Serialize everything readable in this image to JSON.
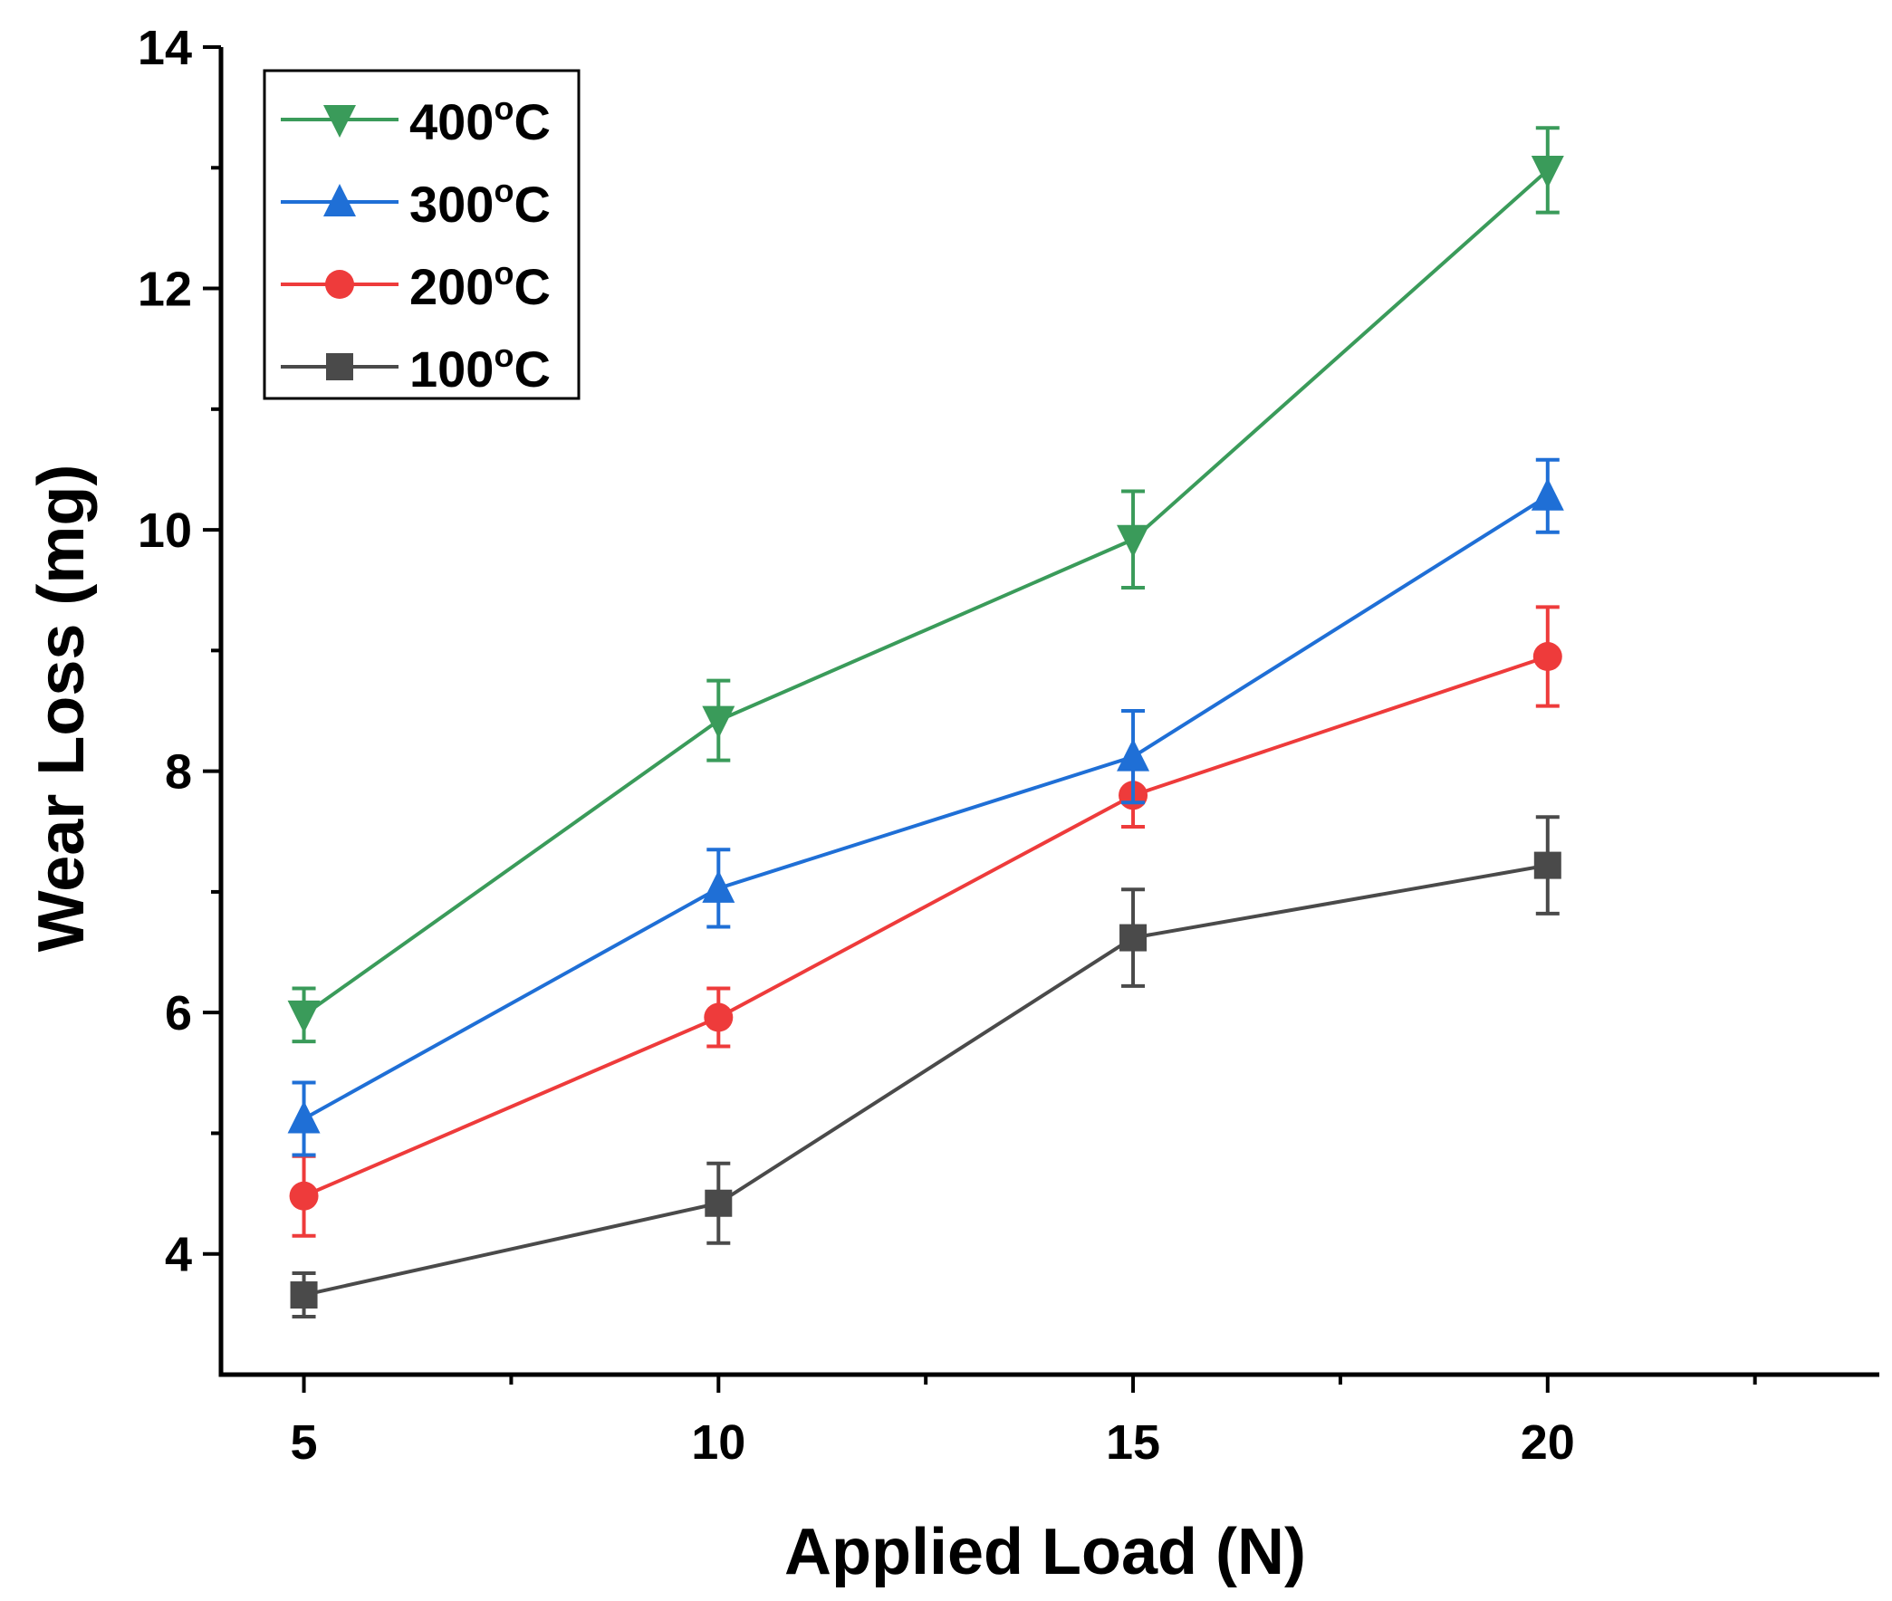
{
  "chart_data": {
    "type": "line",
    "title": "",
    "xlabel": "Applied Load (N)",
    "ylabel": "Wear Loss (mg)",
    "x": [
      5,
      10,
      15,
      20
    ],
    "xlim": [
      4,
      24
    ],
    "ylim": [
      3,
      14
    ],
    "xticks": [
      5,
      10,
      15,
      20
    ],
    "xtick_labels": [
      "5",
      "10",
      "15",
      "20"
    ],
    "yticks": [
      4,
      6,
      8,
      10,
      12,
      14
    ],
    "ytick_labels": [
      "4",
      "6",
      "8",
      "10",
      "12",
      "14"
    ],
    "legend_position": "top-left",
    "series": [
      {
        "name": "400°C",
        "label_main": "400",
        "label_sup": "o",
        "label_unit": "C",
        "color": "#3a9b5a",
        "marker": "triangle-down",
        "values": [
          5.98,
          8.42,
          9.92,
          12.98
        ],
        "errors": [
          0.22,
          0.33,
          0.4,
          0.35
        ]
      },
      {
        "name": "300°C",
        "label_main": "300",
        "label_sup": "o",
        "label_unit": "C",
        "color": "#1f6fd6",
        "marker": "triangle-up",
        "values": [
          5.12,
          7.03,
          8.12,
          10.28
        ],
        "errors": [
          0.3,
          0.32,
          0.38,
          0.3
        ]
      },
      {
        "name": "200°C",
        "label_main": "200",
        "label_sup": "o",
        "label_unit": "C",
        "color": "#ee3b3b",
        "marker": "circle",
        "values": [
          4.48,
          5.96,
          7.8,
          8.95
        ],
        "errors": [
          0.33,
          0.24,
          0.26,
          0.41
        ]
      },
      {
        "name": "100°C",
        "label_main": "100",
        "label_sup": "o",
        "label_unit": "C",
        "color": "#4a4a4a",
        "marker": "square",
        "values": [
          3.66,
          4.42,
          6.62,
          7.22
        ],
        "errors": [
          0.18,
          0.33,
          0.4,
          0.4
        ]
      }
    ]
  }
}
